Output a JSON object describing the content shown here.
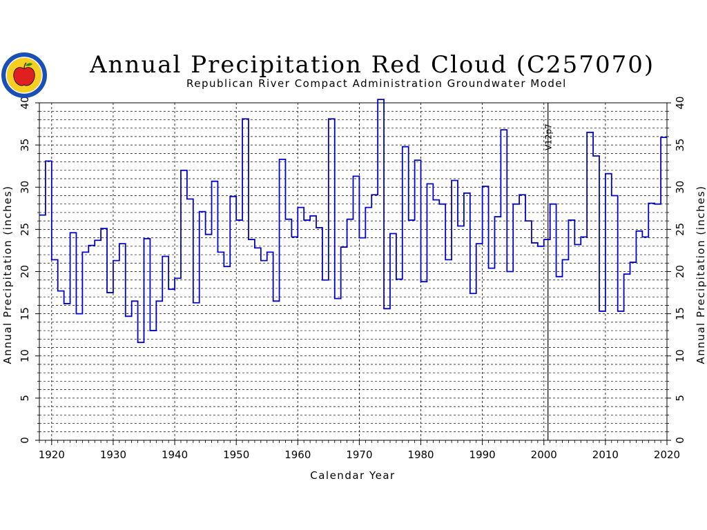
{
  "header": {
    "title": "Annual Precipitation Red Cloud (C257070)",
    "subtitle": "Republican River Compact Administration Groundwater Model"
  },
  "logo": {
    "icon": "apple-seal-logo",
    "ring_color": "#1a4fb5",
    "apple_color": "#e02020",
    "fill_color": "#f5d020"
  },
  "chart_data": {
    "type": "line",
    "style": "step",
    "xlabel": "Calendar Year",
    "ylabel": "Annual Precipitation (inches)",
    "ylabel_right": "Annual Precipitation (inches)",
    "xlim": [
      1918,
      2020
    ],
    "ylim": [
      0,
      40
    ],
    "x_ticks": [
      1920,
      1930,
      1940,
      1950,
      1960,
      1970,
      1980,
      1990,
      2000,
      2010,
      2020
    ],
    "y_ticks": [
      0,
      5,
      10,
      15,
      20,
      25,
      30,
      35,
      40
    ],
    "grid": true,
    "marker_line": {
      "x": 2001,
      "label": "V12p7"
    },
    "line_color": "#0000cc",
    "series": [
      {
        "years": [
          1918,
          1919,
          1920,
          1921,
          1922,
          1923,
          1924,
          1925,
          1926,
          1927,
          1928,
          1929,
          1930,
          1931,
          1932,
          1933,
          1934,
          1935,
          1936,
          1937,
          1938,
          1939,
          1940,
          1941,
          1942,
          1943,
          1944,
          1945,
          1946,
          1947,
          1948,
          1949,
          1950,
          1951,
          1952,
          1953,
          1954,
          1955,
          1956,
          1957,
          1958,
          1959,
          1960,
          1961,
          1962,
          1963,
          1964,
          1965,
          1966,
          1967,
          1968,
          1969,
          1970,
          1971,
          1972,
          1973,
          1974,
          1975,
          1976,
          1977,
          1978,
          1979,
          1980,
          1981,
          1982,
          1983,
          1984,
          1985,
          1986,
          1987,
          1988,
          1989,
          1990,
          1991,
          1992,
          1993,
          1994,
          1995,
          1996,
          1997,
          1998,
          1999,
          2000,
          2001,
          2002,
          2003,
          2004,
          2005,
          2006,
          2007,
          2008,
          2009,
          2010,
          2011,
          2012,
          2013,
          2014,
          2015,
          2016,
          2017,
          2018,
          2019
        ],
        "values": [
          26.7,
          33.1,
          21.4,
          17.7,
          16.2,
          24.6,
          15.0,
          22.3,
          23.1,
          23.7,
          25.1,
          17.5,
          21.3,
          23.3,
          14.7,
          16.5,
          11.6,
          23.9,
          13.0,
          16.5,
          21.8,
          17.9,
          19.2,
          32.0,
          28.6,
          16.3,
          27.1,
          24.4,
          30.7,
          22.3,
          20.6,
          28.9,
          26.1,
          38.1,
          23.8,
          22.8,
          21.3,
          22.3,
          16.5,
          33.3,
          26.2,
          24.1,
          27.6,
          26.1,
          26.6,
          25.2,
          19.0,
          38.1,
          16.8,
          22.9,
          26.2,
          31.3,
          24.0,
          27.6,
          29.1,
          40.4,
          15.6,
          24.5,
          19.1,
          34.8,
          26.1,
          33.2,
          18.8,
          30.4,
          28.5,
          28.0,
          21.4,
          30.8,
          25.4,
          29.3,
          17.4,
          23.3,
          30.1,
          20.4,
          26.5,
          36.8,
          20.0,
          28.0,
          29.1,
          26.0,
          23.4,
          23.0,
          23.8,
          28.0,
          19.4,
          21.4,
          26.1,
          23.2,
          24.1,
          36.5,
          33.7,
          15.3,
          31.6,
          29.0,
          15.3,
          19.7,
          21.1,
          24.8,
          24.1,
          28.1,
          28.0,
          35.9
        ]
      }
    ]
  }
}
